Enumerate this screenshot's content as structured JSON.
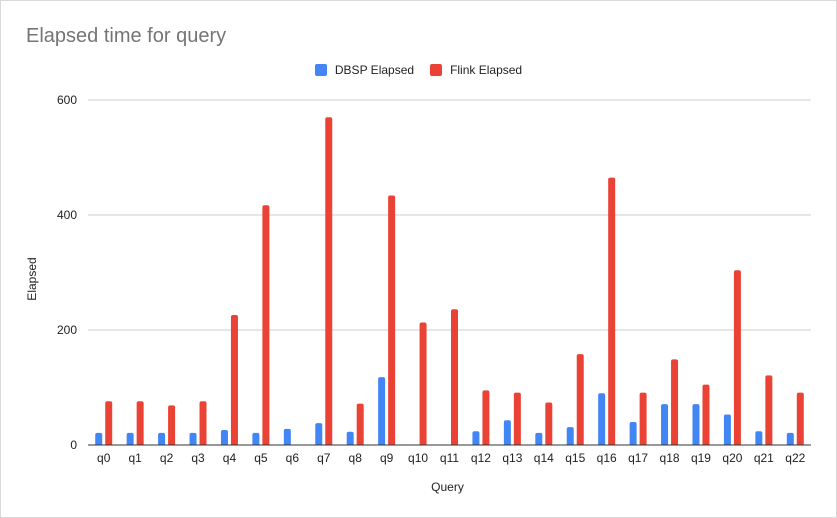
{
  "chart_data": {
    "type": "bar",
    "title": "Elapsed time for query",
    "xlabel": "Query",
    "ylabel": "Elapsed",
    "ylim": [
      0,
      600
    ],
    "yticks": [
      0,
      200,
      400,
      600
    ],
    "grid": true,
    "legend_position": "top-center",
    "categories": [
      "q0",
      "q1",
      "q2",
      "q3",
      "q4",
      "q5",
      "q6",
      "q7",
      "q8",
      "q9",
      "q10",
      "q11",
      "q12",
      "q13",
      "q14",
      "q15",
      "q16",
      "q17",
      "q18",
      "q19",
      "q20",
      "q21",
      "q22"
    ],
    "series": [
      {
        "name": "DBSP Elapsed",
        "color": "#4285f4",
        "values": [
          21,
          21,
          21,
          21,
          26,
          21,
          28,
          38,
          23,
          118,
          0,
          0,
          24,
          43,
          21,
          31,
          90,
          40,
          71,
          71,
          53,
          24,
          21
        ]
      },
      {
        "name": "Flink Elapsed",
        "color": "#ea4335",
        "values": [
          76,
          76,
          69,
          76,
          226,
          417,
          0,
          570,
          72,
          434,
          213,
          236,
          95,
          91,
          74,
          158,
          465,
          91,
          149,
          105,
          304,
          121,
          91
        ]
      }
    ]
  }
}
